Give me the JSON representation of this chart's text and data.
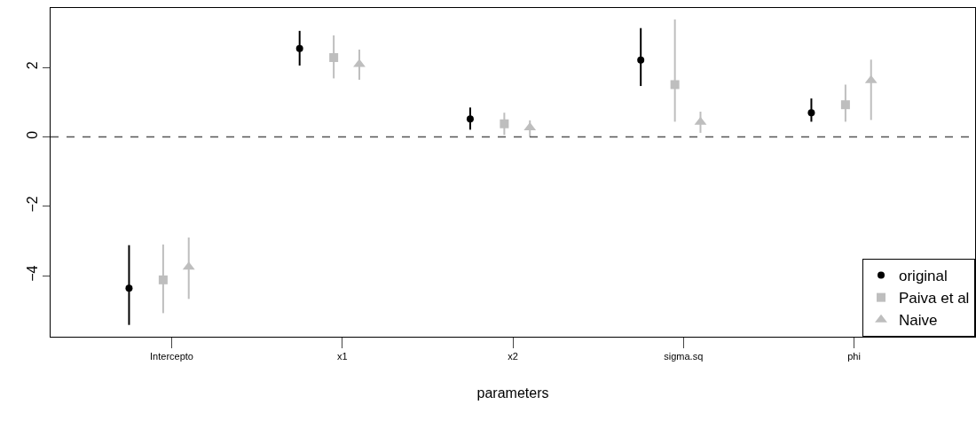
{
  "chart_data": {
    "type": "scatter",
    "xlabel": "parameters",
    "categories": [
      "Intercepto",
      "x1",
      "x2",
      "sigma.sq",
      "phi"
    ],
    "series": [
      {
        "name": "original",
        "color": "#000000",
        "marker": "circle",
        "values": [
          -4.36,
          2.55,
          0.52,
          2.22,
          0.7
        ],
        "errors": [
          [
            -5.42,
            -3.12
          ],
          [
            2.06,
            3.06
          ],
          [
            0.21,
            0.85
          ],
          [
            1.47,
            3.14
          ],
          [
            0.44,
            1.11
          ]
        ]
      },
      {
        "name": "Paiva et al",
        "color": "#bebebe",
        "marker": "square",
        "values": [
          -4.12,
          2.29,
          0.38,
          1.51,
          0.93
        ],
        "errors": [
          [
            -5.08,
            -3.1
          ],
          [
            1.69,
            2.93
          ],
          [
            0.06,
            0.7
          ],
          [
            0.44,
            3.39
          ],
          [
            0.44,
            1.51
          ]
        ]
      },
      {
        "name": "Naive",
        "color": "#bebebe",
        "marker": "triangle",
        "values": [
          -3.75,
          2.1,
          0.27,
          0.43,
          1.63
        ],
        "errors": [
          [
            -4.67,
            -2.9
          ],
          [
            1.65,
            2.52
          ],
          [
            0.0,
            0.48
          ],
          [
            0.12,
            0.73
          ],
          [
            0.49,
            2.23
          ]
        ]
      }
    ],
    "ylim": [
      -5.76,
      3.72
    ],
    "yticks": [
      -4,
      -2,
      0,
      2
    ],
    "ref_lines": [
      {
        "axis": "y",
        "value": 0,
        "color": "#555555",
        "line_style": "dashed"
      }
    ],
    "legend": "bottom right"
  }
}
